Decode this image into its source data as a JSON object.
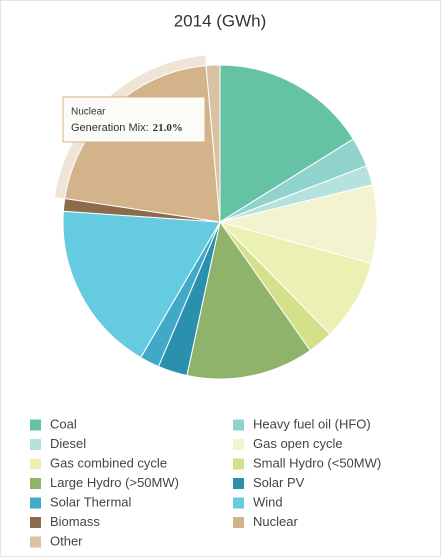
{
  "chart_data": {
    "type": "pie",
    "title": "2014 (GWh)",
    "categories": [
      "Coal",
      "Heavy fuel oil (HFO)",
      "Diesel",
      "Gas open cycle",
      "Gas combined cycle",
      "Small Hydro (<50MW)",
      "Large Hydro (>50MW)",
      "Solar PV",
      "Solar Thermal",
      "Wind",
      "Biomass",
      "Nuclear",
      "Other"
    ],
    "values": [
      16,
      3,
      2,
      8,
      8.3,
      2.6,
      13,
      3,
      2,
      17.5,
      1.3,
      21,
      1.4
    ],
    "colors": [
      "#66c2a5",
      "#8fd3cc",
      "#b4e3de",
      "#f3f3d2",
      "#ebf0b3",
      "#d5e08b",
      "#8fb36b",
      "#2a90ad",
      "#40a9c7",
      "#64cbe1",
      "#8c6b4c",
      "#d3b389",
      "#d9c1a2"
    ],
    "tooltip": {
      "name": "Nuclear",
      "label": "Generation Mix:",
      "value_label": "21.0%"
    }
  }
}
